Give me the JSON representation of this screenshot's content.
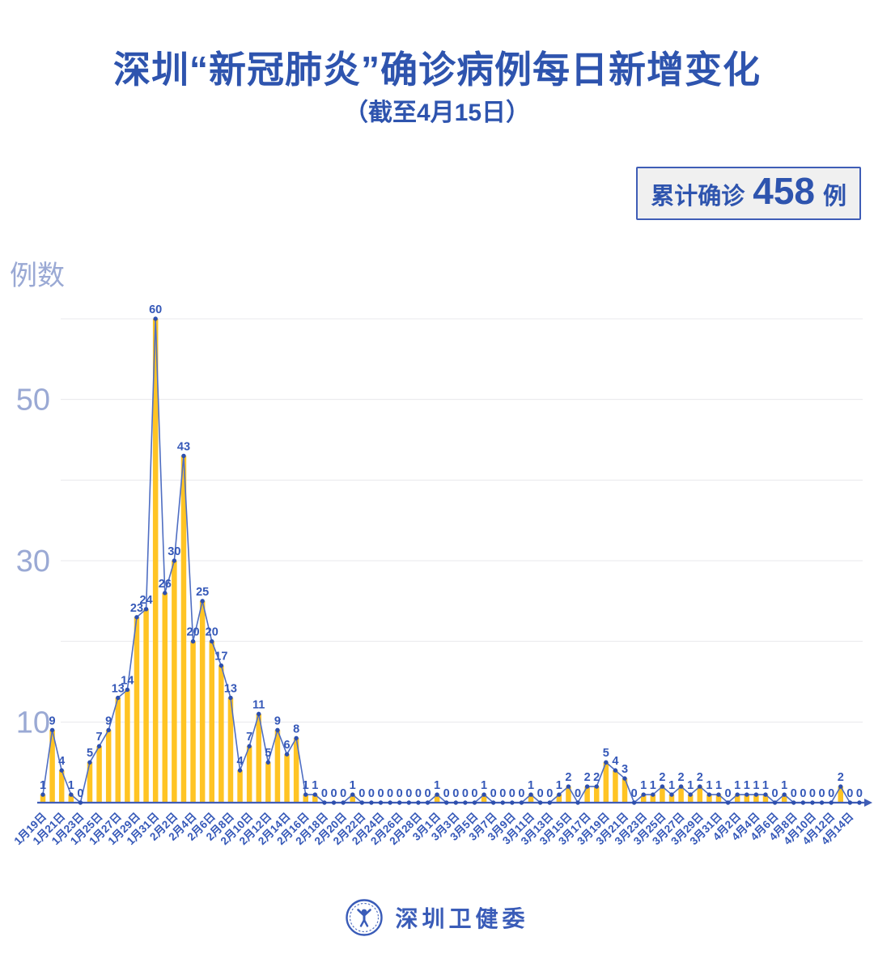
{
  "header": {
    "title": "深圳“新冠肺炎”确诊病例每日新增变化",
    "subtitle": "（截至4月15日）",
    "badge": {
      "prefix": "累计确诊",
      "count": "458",
      "suffix": "例"
    }
  },
  "footer": {
    "brand": "深圳卫健委",
    "logo_icon": "person-in-circle-emblem-icon"
  },
  "colors": {
    "title_blue": "#2e54ae",
    "bar_yellow": "#ffc424",
    "line_blue": "#4f6ec2",
    "dot_blue": "#2d4fae",
    "label_blue": "#3558b8",
    "axis_blue": "#3f5db6",
    "ytick_gray_blue": "#9aa9d4",
    "gridline_gray": "#e8e8ec",
    "badge_bg": "#f0f0f0"
  },
  "chart_data": {
    "type": "bar",
    "title": "深圳“新冠肺炎”确诊病例每日新增变化",
    "subtitle": "（截至4月15日）",
    "annotation": "累计确诊 458 例",
    "xlabel": "",
    "ylabel": "例数",
    "ylim": [
      0,
      62
    ],
    "yticks_labeled": [
      10,
      30,
      50
    ],
    "gridlines": [
      10,
      20,
      30,
      40,
      50,
      60
    ],
    "grid": "horizontal-only",
    "legend_position": "none",
    "x_tick_every": 2,
    "categories": [
      "1月19日",
      "1月20日",
      "1月21日",
      "1月22日",
      "1月23日",
      "1月24日",
      "1月25日",
      "1月26日",
      "1月27日",
      "1月28日",
      "1月29日",
      "1月30日",
      "1月31日",
      "2月1日",
      "2月2日",
      "2月3日",
      "2月4日",
      "2月5日",
      "2月6日",
      "2月7日",
      "2月8日",
      "2月9日",
      "2月10日",
      "2月11日",
      "2月12日",
      "2月13日",
      "2月14日",
      "2月15日",
      "2月16日",
      "2月17日",
      "2月18日",
      "2月19日",
      "2月20日",
      "2月21日",
      "2月22日",
      "2月23日",
      "2月24日",
      "2月25日",
      "2月26日",
      "2月27日",
      "2月28日",
      "2月29日",
      "3月1日",
      "3月2日",
      "3月3日",
      "3月4日",
      "3月5日",
      "3月6日",
      "3月7日",
      "3月8日",
      "3月9日",
      "3月10日",
      "3月11日",
      "3月12日",
      "3月13日",
      "3月14日",
      "3月15日",
      "3月16日",
      "3月17日",
      "3月18日",
      "3月19日",
      "3月20日",
      "3月21日",
      "3月22日",
      "3月23日",
      "3月24日",
      "3月25日",
      "3月26日",
      "3月27日",
      "3月28日",
      "3月29日",
      "3月30日",
      "3月31日",
      "4月1日",
      "4月2日",
      "4月3日",
      "4月4日",
      "4月5日",
      "4月6日",
      "4月7日",
      "4月8日",
      "4月9日",
      "4月10日",
      "4月11日",
      "4月12日",
      "4月13日",
      "4月14日",
      "4月15日"
    ],
    "values": [
      1,
      9,
      4,
      1,
      0,
      5,
      7,
      9,
      13,
      14,
      23,
      24,
      60,
      26,
      30,
      43,
      20,
      25,
      20,
      17,
      13,
      4,
      7,
      11,
      5,
      9,
      6,
      8,
      1,
      1,
      0,
      0,
      0,
      1,
      0,
      0,
      0,
      0,
      0,
      0,
      0,
      0,
      1,
      0,
      0,
      0,
      0,
      1,
      0,
      0,
      0,
      0,
      1,
      0,
      0,
      1,
      2,
      0,
      2,
      2,
      5,
      4,
      3,
      0,
      1,
      1,
      2,
      1,
      2,
      1,
      2,
      1,
      1,
      0,
      1,
      1,
      1,
      1,
      0,
      1,
      0,
      0,
      0,
      0,
      0,
      2,
      0,
      0
    ],
    "total": 458
  }
}
